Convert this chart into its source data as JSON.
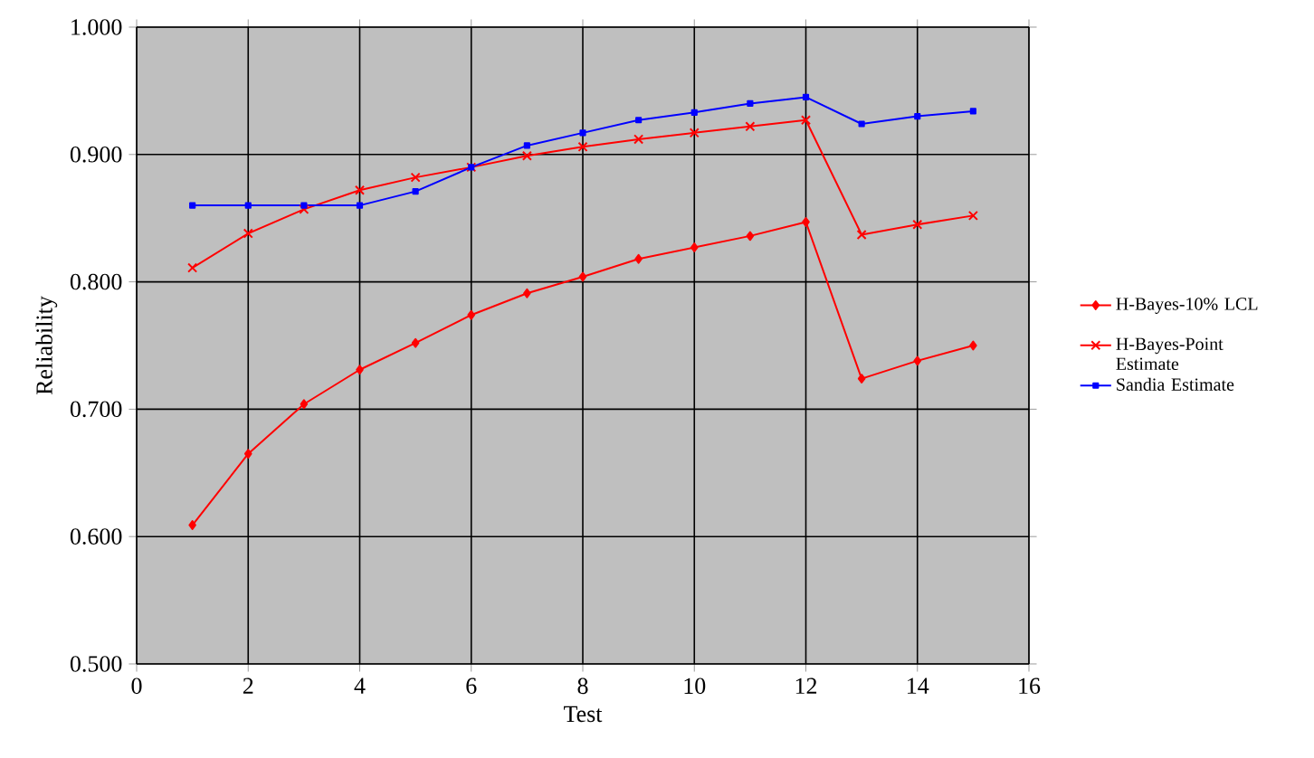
{
  "chart_data": {
    "type": "line",
    "xlabel": "Test",
    "ylabel": "Reliability",
    "x": [
      1,
      2,
      3,
      4,
      5,
      6,
      7,
      8,
      9,
      10,
      11,
      12,
      13,
      14,
      15
    ],
    "series": [
      {
        "name": "H-Bayes-10% LCL",
        "color": "#ff0000",
        "marker": "diamond",
        "values": [
          0.609,
          0.665,
          0.704,
          0.731,
          0.752,
          0.774,
          0.791,
          0.804,
          0.818,
          0.827,
          0.836,
          0.847,
          0.724,
          0.738,
          0.75
        ]
      },
      {
        "name": "H-Bayes-Point Estimate",
        "color": "#ff0000",
        "marker": "cross",
        "values": [
          0.811,
          0.838,
          0.857,
          0.872,
          0.882,
          0.89,
          0.899,
          0.906,
          0.912,
          0.917,
          0.922,
          0.927,
          0.837,
          0.845,
          0.852
        ]
      },
      {
        "name": "Sandia Estimate",
        "color": "#0000ff",
        "marker": "square",
        "values": [
          0.86,
          0.86,
          0.86,
          0.86,
          0.871,
          0.89,
          0.907,
          0.917,
          0.927,
          0.933,
          0.94,
          0.945,
          0.924,
          0.93,
          0.934
        ]
      }
    ],
    "xlim": [
      0,
      16
    ],
    "xticks": [
      0,
      2,
      4,
      6,
      8,
      10,
      12,
      14,
      16
    ],
    "ylim": [
      0.5,
      1.0
    ],
    "yticks": [
      {
        "value": 0.5,
        "label": "0.500"
      },
      {
        "value": 0.6,
        "label": "0.600"
      },
      {
        "value": 0.7,
        "label": "0.700"
      },
      {
        "value": 0.8,
        "label": "0.800"
      },
      {
        "value": 0.9,
        "label": "0.900"
      },
      {
        "value": 1.0,
        "label": "1.000"
      }
    ],
    "grid": true,
    "legend": "right"
  }
}
